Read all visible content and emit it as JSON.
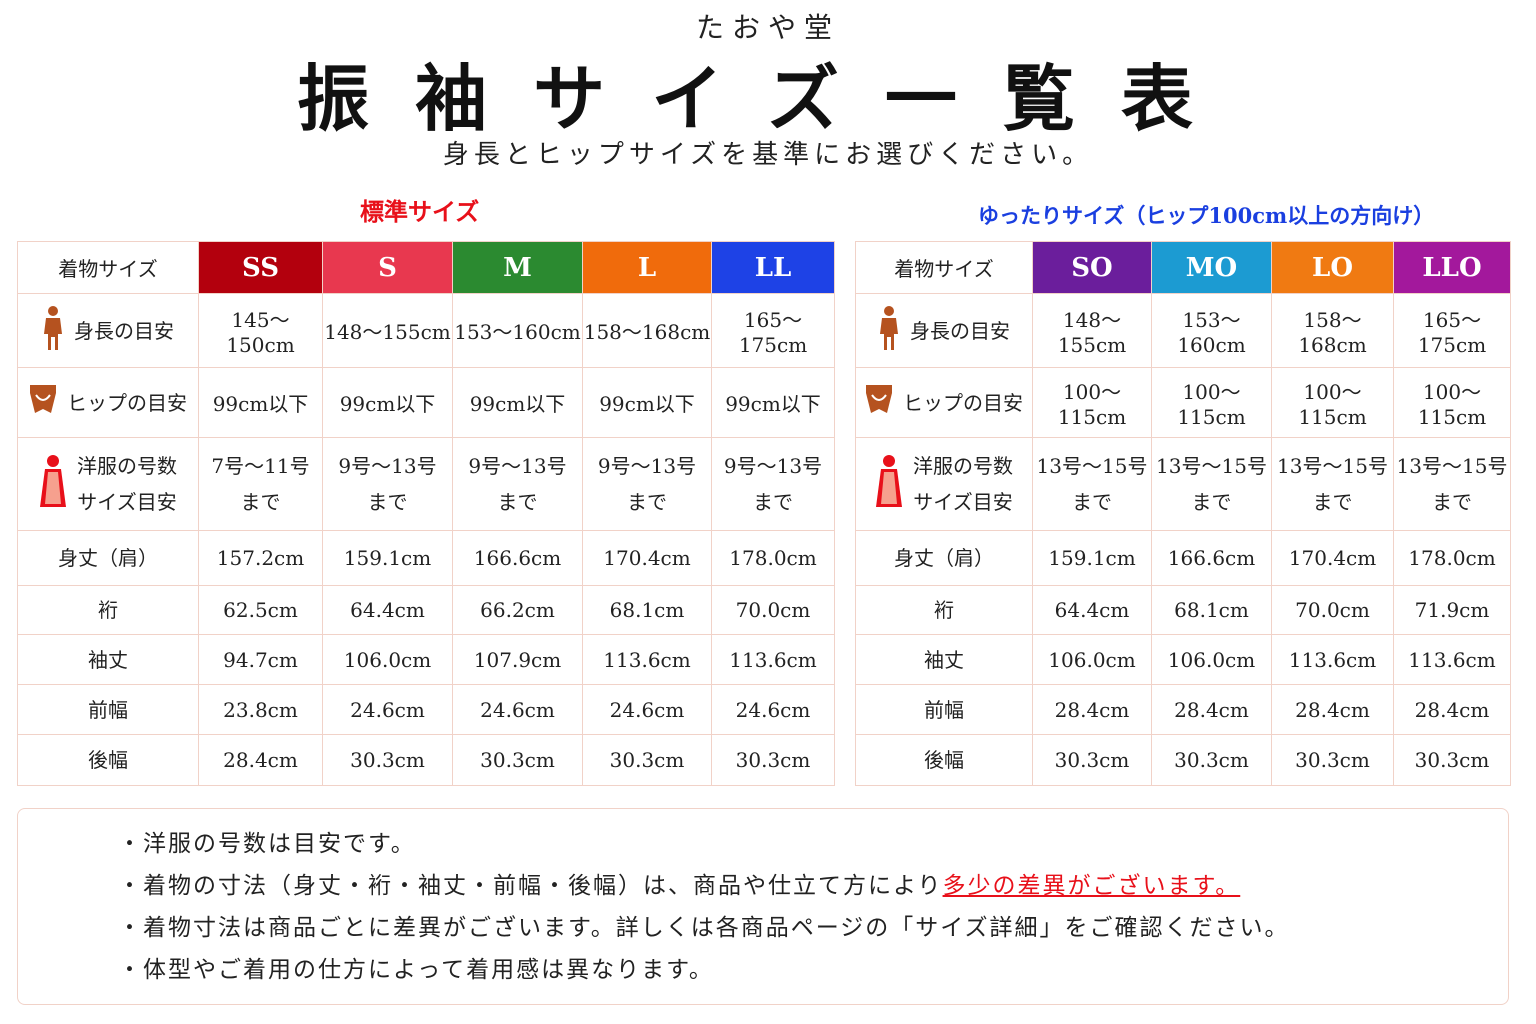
{
  "header": {
    "shop": "たおや堂",
    "title": "振袖サイズ一覧表",
    "subtitle": "身長とヒップサイズを基準にお選びください。"
  },
  "tables": [
    {
      "label": "標準サイズ",
      "label_color": "#e8101a",
      "columns": [
        "着物サイズ",
        "SS",
        "S",
        "M",
        "L",
        "LL"
      ],
      "column_colors": [
        "#b3000d",
        "#e8384f",
        "#2b8a30",
        "#f06b0c",
        "#1e42e6"
      ],
      "rows": [
        [
          [
            "身長の目安"
          ],
          "145～150cm",
          "148～155cm",
          "153～160cm",
          "158～168cm",
          "165～175cm"
        ],
        [
          [
            "ヒップの目安"
          ],
          "99cm以下",
          "99cm以下",
          "99cm以下",
          "99cm以下",
          "99cm以下"
        ],
        [
          [
            "洋服の号数",
            "サイズ目安"
          ],
          [
            "7号～11号",
            "まで"
          ],
          [
            "9号～13号",
            "まで"
          ],
          [
            "9号～13号",
            "まで"
          ],
          [
            "9号～13号",
            "まで"
          ],
          [
            "9号～13号",
            "まで"
          ]
        ],
        [
          [
            "身丈（肩）"
          ],
          "157.2cm",
          "159.1cm",
          "166.6cm",
          "170.4cm",
          "178.0cm"
        ],
        [
          [
            "裄"
          ],
          "62.5cm",
          "64.4cm",
          "66.2cm",
          "68.1cm",
          "70.0cm"
        ],
        [
          [
            "袖丈"
          ],
          "94.7cm",
          "106.0cm",
          "107.9cm",
          "113.6cm",
          "113.6cm"
        ],
        [
          [
            "前幅"
          ],
          "23.8cm",
          "24.6cm",
          "24.6cm",
          "24.6cm",
          "24.6cm"
        ],
        [
          [
            "後幅"
          ],
          "28.4cm",
          "30.3cm",
          "30.3cm",
          "30.3cm",
          "30.3cm"
        ]
      ]
    },
    {
      "label": "ゆったりサイズ（ヒップ100cm以上の方向け）",
      "label_color": "#1a3fe0",
      "columns": [
        "着物サイズ",
        "SO",
        "MO",
        "LO",
        "LLO"
      ],
      "column_colors": [
        "#6b1e9c",
        "#1c9bd2",
        "#f07a12",
        "#a3189c"
      ],
      "rows": [
        [
          [
            "身長の目安"
          ],
          "148～155cm",
          "153～160cm",
          "158～168cm",
          "165～175cm"
        ],
        [
          [
            "ヒップの目安"
          ],
          "100～115cm",
          "100～115cm",
          "100～115cm",
          "100～115cm"
        ],
        [
          [
            "洋服の号数",
            "サイズ目安"
          ],
          [
            "13号～15号",
            "まで"
          ],
          [
            "13号～15号",
            "まで"
          ],
          [
            "13号～15号",
            "まで"
          ],
          [
            "13号～15号",
            "まで"
          ]
        ],
        [
          [
            "身丈（肩）"
          ],
          "159.1cm",
          "166.6cm",
          "170.4cm",
          "178.0cm"
        ],
        [
          [
            "裄"
          ],
          "64.4cm",
          "68.1cm",
          "70.0cm",
          "71.9cm"
        ],
        [
          [
            "袖丈"
          ],
          "106.0cm",
          "106.0cm",
          "113.6cm",
          "113.6cm"
        ],
        [
          [
            "前幅"
          ],
          "28.4cm",
          "28.4cm",
          "28.4cm",
          "28.4cm"
        ],
        [
          [
            "後幅"
          ],
          "30.3cm",
          "30.3cm",
          "30.3cm",
          "30.3cm"
        ]
      ]
    }
  ],
  "notes": [
    {
      "text": "・洋服の号数は目安です。"
    },
    {
      "text": "・着物の寸法（身丈・裄・袖丈・前幅・後幅）は、商品や仕立て方により",
      "highlight": "多少の差異がございます。"
    },
    {
      "text": "・着物寸法は商品ごとに差異がございます。詳しくは各商品ページの「サイズ詳細」をご確認ください。"
    },
    {
      "text": "・体型やご着用の仕方によって着用感は異なります。"
    }
  ]
}
